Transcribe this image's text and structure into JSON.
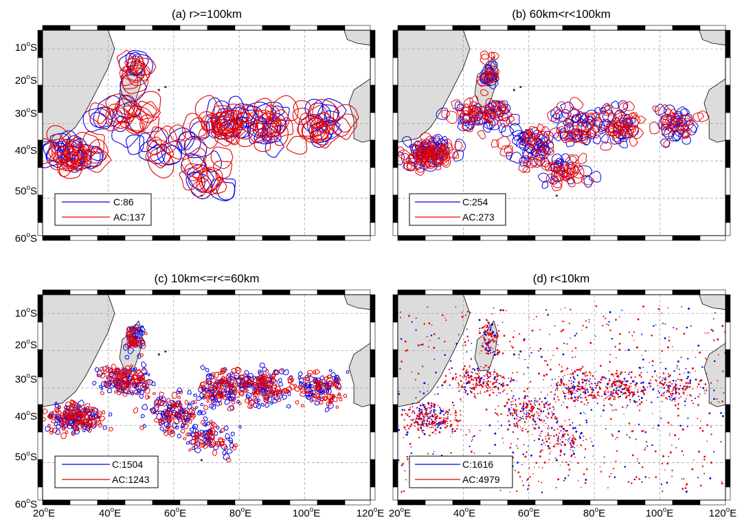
{
  "chart_data": {
    "type": "map",
    "colors": {
      "C": "#0000e6",
      "AC": "#e60000",
      "land": "#dcdcdc",
      "grid": "#999999"
    },
    "x_ticks": [
      {
        "deg": 20,
        "sup": "o",
        "suffix": "E"
      },
      {
        "deg": 40,
        "sup": "o",
        "suffix": "E"
      },
      {
        "deg": 60,
        "sup": "o",
        "suffix": "E"
      },
      {
        "deg": 80,
        "sup": "o",
        "suffix": "E"
      },
      {
        "deg": 100,
        "sup": "o",
        "suffix": "E"
      },
      {
        "deg": 120,
        "sup": "o",
        "suffix": "E"
      }
    ],
    "y_ticks": [
      {
        "deg": 10,
        "sup": "o",
        "suffix": "S"
      },
      {
        "deg": 20,
        "sup": "o",
        "suffix": "S"
      },
      {
        "deg": 30,
        "sup": "o",
        "suffix": "S"
      },
      {
        "deg": 40,
        "sup": "o",
        "suffix": "S"
      },
      {
        "deg": 50,
        "sup": "o",
        "suffix": "S"
      },
      {
        "deg": 60,
        "sup": "o",
        "suffix": "S"
      }
    ],
    "lon_range": [
      20,
      120
    ],
    "lat_range": [
      -60,
      -5
    ],
    "panels": [
      {
        "title": "(a) r>=100km",
        "legend": {
          "c": "C:86",
          "ac": "AC:137"
        },
        "c_count": 86,
        "ac_count": 137,
        "style": "large"
      },
      {
        "title": "(b) 60km<r<100km",
        "legend": {
          "c": "C:254",
          "ac": "AC:273"
        },
        "c_count": 254,
        "ac_count": 273,
        "style": "medium"
      },
      {
        "title": "(c) 10km<=r<=60km",
        "legend": {
          "c": "C:1504",
          "ac": "AC:1243"
        },
        "c_count": 1504,
        "ac_count": 1243,
        "style": "small"
      },
      {
        "title": "(d) r<10km",
        "legend": {
          "c": "C:1616",
          "ac": "AC:4979"
        },
        "c_count": 1616,
        "ac_count": 4979,
        "style": "dots"
      }
    ]
  }
}
